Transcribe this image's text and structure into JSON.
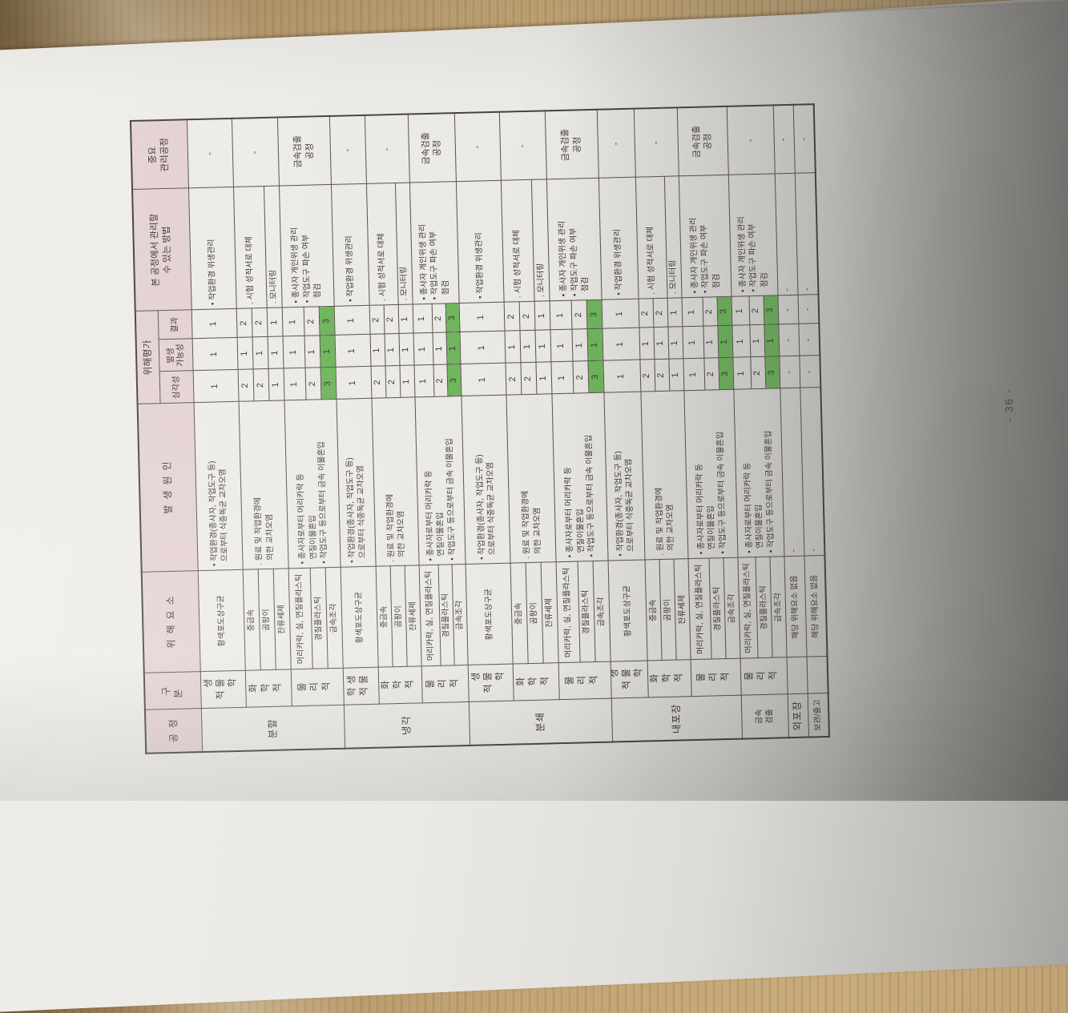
{
  "page": {
    "number": "- 36 -"
  },
  "table": {
    "headers": {
      "process": "공정",
      "category": "구분",
      "hazard": "위해요소",
      "cause": "발생원인",
      "assessment": "위해평가",
      "severity": "심각성",
      "likelihood": "발생\n가능성",
      "result": "결과",
      "control": "본 공정에서 관리할\n수 있는 방법",
      "ccp": "중요\n관리공정"
    },
    "groups": [
      {
        "process": "분할",
        "categories": [
          {
            "label": "생물학적",
            "cause": "• 작업환경(종사자, 작업도구 등)\n  으로부터 식중독균 교차오염",
            "controls": [
              {
                "text": "• 작업환경 위생관리",
                "span": 1
              }
            ],
            "ccp": "-",
            "rows": [
              {
                "hazard": "황색포도상구균",
                "severity": "1",
                "likelihood": "1",
                "result": "1",
                "green": false
              }
            ]
          },
          {
            "label": "화학적",
            "cause": ". 원료 및 작업환경에\n  의한 교차오염",
            "controls": [
              {
                "text": ". 시험 성적서로 대체",
                "span": 2
              },
              {
                "text": ". 모니터링",
                "span": 1
              }
            ],
            "ccp": "-",
            "rows": [
              {
                "hazard": "중금속",
                "severity": "2",
                "likelihood": "1",
                "result": "2",
                "green": false
              },
              {
                "hazard": "곰팡이",
                "severity": "2",
                "likelihood": "1",
                "result": "2",
                "green": false
              },
              {
                "hazard": "잔류세제",
                "severity": "1",
                "likelihood": "1",
                "result": "1",
                "green": false
              }
            ]
          },
          {
            "label": "물리적",
            "cause": "• 종사자로부터 머리카락 등\n  연질이물혼입\n• 작업도구 등으로부터 금속 이물혼입",
            "controls": [
              {
                "text": "• 종사자 개인위생 관리\n• 작업도구 파손 여부\n  점검",
                "span": 3
              }
            ],
            "ccp": "금속검출\n공정",
            "rows": [
              {
                "hazard": "머리카락, 실, 연질플라스틱",
                "severity": "1",
                "likelihood": "1",
                "result": "1",
                "green": false
              },
              {
                "hazard": "경질플라스틱",
                "severity": "2",
                "likelihood": "1",
                "result": "2",
                "green": false
              },
              {
                "hazard": "금속조각",
                "severity": "3",
                "likelihood": "1",
                "result": "3",
                "green": true
              }
            ]
          }
        ]
      },
      {
        "process": "냉각",
        "categories": [
          {
            "label": "생물학적",
            "cause": "• 작업환경(종사자, 작업도구 등)\n  으로부터 식중독균 교차오염",
            "controls": [
              {
                "text": "• 작업환경 위생관리",
                "span": 1
              }
            ],
            "ccp": "-",
            "rows": [
              {
                "hazard": "황색포도상구균",
                "severity": "1",
                "likelihood": "1",
                "result": "1",
                "green": false
              }
            ]
          },
          {
            "label": "화학적",
            "cause": ". 원료 및 작업환경에\n  의한 교차오염",
            "controls": [
              {
                "text": ". 시험 성적서로 대체",
                "span": 2
              },
              {
                "text": ". 모니터링",
                "span": 1
              }
            ],
            "ccp": "-",
            "rows": [
              {
                "hazard": "중금속",
                "severity": "2",
                "likelihood": "1",
                "result": "2",
                "green": false
              },
              {
                "hazard": "곰팡이",
                "severity": "2",
                "likelihood": "1",
                "result": "2",
                "green": false
              },
              {
                "hazard": "잔류세제",
                "severity": "1",
                "likelihood": "1",
                "result": "1",
                "green": false
              }
            ]
          },
          {
            "label": "물리적",
            "cause": "• 종사자로부터 머리카락 등\n  연질이물혼입\n• 작업도구 등으로부터 금속 이물혼입",
            "controls": [
              {
                "text": "• 종사자 개인위생 관리\n• 작업도구 파손 여부\n  점검",
                "span": 3
              }
            ],
            "ccp": "금속검출\n공정",
            "rows": [
              {
                "hazard": "머리카락, 실, 연질플라스틱",
                "severity": "1",
                "likelihood": "1",
                "result": "1",
                "green": false
              },
              {
                "hazard": "경질플라스틱",
                "severity": "2",
                "likelihood": "1",
                "result": "2",
                "green": false
              },
              {
                "hazard": "금속조각",
                "severity": "3",
                "likelihood": "1",
                "result": "3",
                "green": true
              }
            ]
          }
        ]
      },
      {
        "process": "분쇄",
        "categories": [
          {
            "label": "생물학적",
            "cause": "• 작업환경(종사자, 작업도구 등)\n  으로부터 식중독균 교차오염",
            "controls": [
              {
                "text": "• 작업환경 위생관리",
                "span": 1
              }
            ],
            "ccp": "-",
            "rows": [
              {
                "hazard": "황색포도상구균",
                "severity": "1",
                "likelihood": "1",
                "result": "1",
                "green": false
              }
            ]
          },
          {
            "label": "화학적",
            "cause": ". 원료 및 작업환경에\n  의한 교차오염",
            "controls": [
              {
                "text": ". 시험 성적서로 대체",
                "span": 2
              },
              {
                "text": ". 모니터링",
                "span": 1
              }
            ],
            "ccp": "-",
            "rows": [
              {
                "hazard": "중금속",
                "severity": "2",
                "likelihood": "1",
                "result": "2",
                "green": false
              },
              {
                "hazard": "곰팡이",
                "severity": "2",
                "likelihood": "1",
                "result": "2",
                "green": false
              },
              {
                "hazard": "잔류세제",
                "severity": "1",
                "likelihood": "1",
                "result": "1",
                "green": false
              }
            ]
          },
          {
            "label": "물리적",
            "cause": "• 종사자로부터 머리카락 등\n  연질이물혼입\n• 작업도구 등으로부터 금속 이물혼입",
            "controls": [
              {
                "text": "• 종사자 개인위생 관리\n• 작업도구 파손 여부\n  점검",
                "span": 3
              }
            ],
            "ccp": "금속검출\n공정",
            "rows": [
              {
                "hazard": "머리카락, 실, 연질플라스틱",
                "severity": "1",
                "likelihood": "1",
                "result": "1",
                "green": false
              },
              {
                "hazard": "경질플라스틱",
                "severity": "2",
                "likelihood": "1",
                "result": "2",
                "green": false
              },
              {
                "hazard": "금속조각",
                "severity": "3",
                "likelihood": "1",
                "result": "3",
                "green": true
              }
            ]
          }
        ]
      },
      {
        "process": "내포장",
        "categories": [
          {
            "label": "생물학적",
            "cause": "• 작업환경(종사자, 작업도구 등)\n  으로부터 식중독균 교차오염",
            "controls": [
              {
                "text": "• 작업환경 위생관리",
                "span": 1
              }
            ],
            "ccp": "-",
            "rows": [
              {
                "hazard": "황색포도상구균",
                "severity": "1",
                "likelihood": "1",
                "result": "1",
                "green": false
              }
            ]
          },
          {
            "label": "화학적",
            "cause": ". 원료 및 작업환경에\n  의한 교차오염",
            "controls": [
              {
                "text": ". 시험 성적서로 대체",
                "span": 2
              },
              {
                "text": ". 모니터링",
                "span": 1
              }
            ],
            "ccp": "-",
            "rows": [
              {
                "hazard": "중금속",
                "severity": "2",
                "likelihood": "1",
                "result": "2",
                "green": false
              },
              {
                "hazard": "곰팡이",
                "severity": "2",
                "likelihood": "1",
                "result": "2",
                "green": false
              },
              {
                "hazard": "잔류세제",
                "severity": "1",
                "likelihood": "1",
                "result": "1",
                "green": false
              }
            ]
          },
          {
            "label": "물리적",
            "cause": "• 종사자로부터 머리카락 등\n  연질이물혼입\n• 작업도구 등으로부터 금속 이물혼입",
            "controls": [
              {
                "text": "• 종사자 개인위생 관리\n• 작업도구 파손 여부\n  점검",
                "span": 3
              }
            ],
            "ccp": "금속검출\n공정",
            "rows": [
              {
                "hazard": "머리카락, 실, 연질플라스틱",
                "severity": "1",
                "likelihood": "1",
                "result": "1",
                "green": false
              },
              {
                "hazard": "경질플라스틱",
                "severity": "2",
                "likelihood": "1",
                "result": "2",
                "green": false
              },
              {
                "hazard": "금속조각",
                "severity": "3",
                "likelihood": "1",
                "result": "3",
                "green": true
              }
            ]
          }
        ]
      },
      {
        "process": "금속\n검출",
        "categories": [
          {
            "label": "물리적",
            "cause": "• 종사자로부터 머리카락 등\n  연질이물혼입\n• 작업도구 등으로부터 금속 이물혼입",
            "controls": [
              {
                "text": "• 종사자 개인위생 관리\n• 작업도구 파손 여부\n  점검",
                "span": 3
              }
            ],
            "ccp": "-",
            "rows": [
              {
                "hazard": "머리카락, 실, 연질플라스틱",
                "severity": "1",
                "likelihood": "1",
                "result": "1",
                "green": false
              },
              {
                "hazard": "경질플라스틱",
                "severity": "2",
                "likelihood": "1",
                "result": "2",
                "green": false
              },
              {
                "hazard": "금속조각",
                "severity": "3",
                "likelihood": "1",
                "result": "3",
                "green": true
              }
            ]
          }
        ]
      },
      {
        "process": "외포장",
        "categories": [
          {
            "label": "",
            "cause": "-",
            "controls": [
              {
                "text": "-",
                "span": 1
              }
            ],
            "ccp": "-",
            "rows": [
              {
                "hazard": "해당 위해요소 없음",
                "severity": "-",
                "likelihood": "-",
                "result": "-",
                "green": false
              }
            ]
          }
        ]
      },
      {
        "process": "보관/출고",
        "categories": [
          {
            "label": "",
            "cause": "-",
            "controls": [
              {
                "text": "-",
                "span": 1
              }
            ],
            "ccp": "-",
            "rows": [
              {
                "hazard": "해당 위해요소 없음",
                "severity": "-",
                "likelihood": "-",
                "result": "-",
                "green": false
              }
            ]
          }
        ]
      }
    ]
  }
}
